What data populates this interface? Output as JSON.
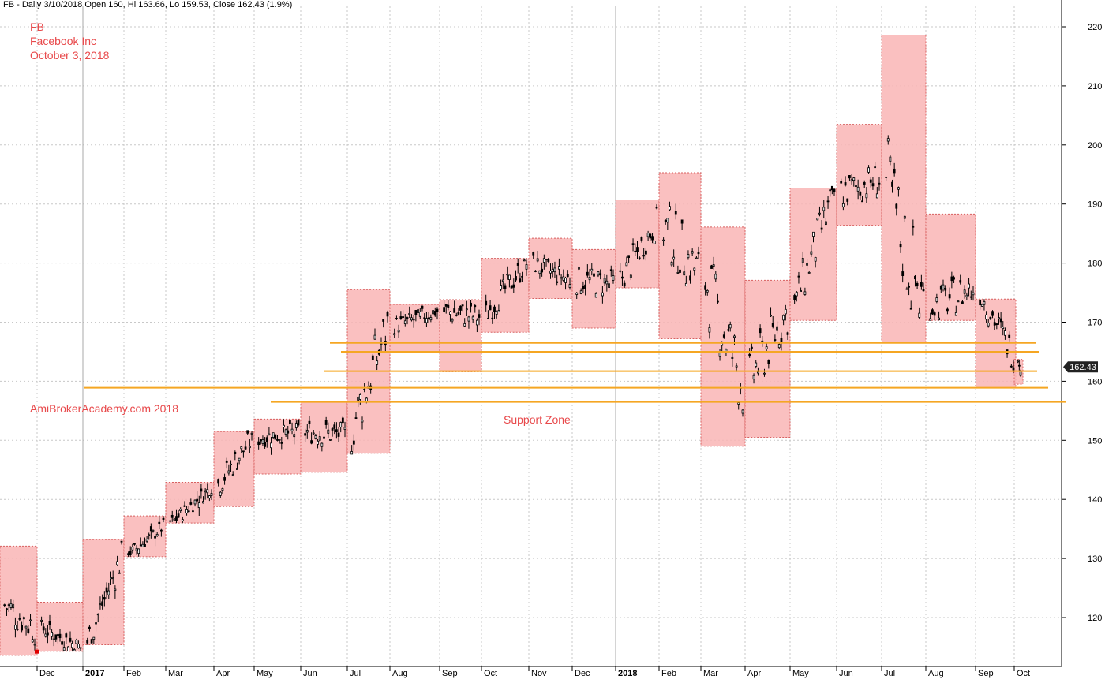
{
  "header": {
    "text": "FB - Daily 3/10/2018 Open 160, Hi 163.66, Lo 159.53, Close 162.43 (1.9%)"
  },
  "annotations": {
    "ticker": "FB",
    "company": "Facebook Inc",
    "date": "October 3, 2018",
    "watermark": "AmiBrokerAcademy.com  2018",
    "support_label": "Support Zone"
  },
  "colors": {
    "box_fill": "#f9b5b5",
    "box_border": "#d86060",
    "support_line": "#f5a623",
    "candle": "#000000",
    "grid": "#c8c8c8",
    "price_tag_bg": "#222222",
    "text_red": "#e8494b"
  },
  "chart_data": {
    "type": "candlestick",
    "title": "FB - Daily 3/10/2018 Open 160, Hi 163.66, Lo 159.53, Close 162.43 (1.9%)",
    "ylim": [
      113,
      222
    ],
    "y_ticks": [
      120,
      130,
      140,
      150,
      160,
      170,
      180,
      190,
      200,
      210,
      220
    ],
    "x_ticks": [
      "Dec",
      "2017",
      "Feb",
      "Mar",
      "Apr",
      "May",
      "Jun",
      "Jul",
      "Aug",
      "Sep",
      "Oct",
      "Nov",
      "Dec",
      "2018",
      "Feb",
      "Mar",
      "Apr",
      "May",
      "Jun",
      "Jul",
      "Aug",
      "Sep",
      "Oct"
    ],
    "last_price_label": "162.43",
    "grid": true,
    "monthly_ranges": [
      {
        "month": "Nov 2016",
        "high": 132.1,
        "low": 113.6
      },
      {
        "month": "Dec 2016",
        "high": 122.6,
        "low": 114.3
      },
      {
        "month": "Jan 2017",
        "high": 133.2,
        "low": 115.4
      },
      {
        "month": "Feb 2017",
        "high": 137.2,
        "low": 130.3
      },
      {
        "month": "Mar 2017",
        "high": 142.9,
        "low": 136.0
      },
      {
        "month": "Apr 2017",
        "high": 151.5,
        "low": 138.8
      },
      {
        "month": "May 2017",
        "high": 153.6,
        "low": 144.3
      },
      {
        "month": "Jun 2017",
        "high": 156.5,
        "low": 144.6
      },
      {
        "month": "Jul 2017",
        "high": 175.5,
        "low": 147.8
      },
      {
        "month": "Aug 2017",
        "high": 173.0,
        "low": 165.0
      },
      {
        "month": "Sep 2017",
        "high": 173.8,
        "low": 161.6
      },
      {
        "month": "Oct 2017",
        "high": 180.8,
        "low": 168.3
      },
      {
        "month": "Nov 2017",
        "high": 184.2,
        "low": 174.0
      },
      {
        "month": "Dec 2017",
        "high": 182.3,
        "low": 169.0
      },
      {
        "month": "Jan 2018",
        "high": 190.7,
        "low": 175.8
      },
      {
        "month": "Feb 2018",
        "high": 195.3,
        "low": 167.2
      },
      {
        "month": "Mar 2018",
        "high": 186.1,
        "low": 149.0
      },
      {
        "month": "Apr 2018",
        "high": 177.1,
        "low": 150.5
      },
      {
        "month": "May 2018",
        "high": 192.7,
        "low": 170.3
      },
      {
        "month": "Jun 2018",
        "high": 203.5,
        "low": 186.4
      },
      {
        "month": "Jul 2018",
        "high": 218.6,
        "low": 166.6
      },
      {
        "month": "Aug 2018",
        "high": 188.3,
        "low": 170.3
      },
      {
        "month": "Sep 2018",
        "high": 173.9,
        "low": 158.9
      },
      {
        "month": "Oct 2018",
        "high": 163.7,
        "low": 159.5
      }
    ],
    "support_lines": [
      166.5,
      165.0,
      161.7,
      158.9,
      156.5
    ],
    "support_zone_label": "Support Zone",
    "key_closes": [
      {
        "date": "Nov 2016",
        "close": 118.4
      },
      {
        "date": "Dec 2016",
        "close": 115.0
      },
      {
        "date": "Jan 2017",
        "close": 130.3
      },
      {
        "date": "Feb 2017",
        "close": 135.5
      },
      {
        "date": "Mar 2017",
        "close": 142.1
      },
      {
        "date": "Apr 2017",
        "close": 150.3
      },
      {
        "date": "May 2017",
        "close": 151.5
      },
      {
        "date": "Jun 2017",
        "close": 151.0
      },
      {
        "date": "Jul 2017",
        "close": 169.3
      },
      {
        "date": "Aug 2017",
        "close": 171.9
      },
      {
        "date": "Sep 2017",
        "close": 170.9
      },
      {
        "date": "Oct 2017",
        "close": 180.1
      },
      {
        "date": "Nov 2017",
        "close": 177.2
      },
      {
        "date": "Dec 2017",
        "close": 176.5
      },
      {
        "date": "Jan 2018",
        "close": 186.9
      },
      {
        "date": "Feb 2018",
        "close": 178.3
      },
      {
        "date": "Mar 2018",
        "close": 159.8
      },
      {
        "date": "Apr 2018",
        "close": 172.0
      },
      {
        "date": "May 2018",
        "close": 191.8
      },
      {
        "date": "Jun 2018",
        "close": 194.3
      },
      {
        "date": "Jul 2018",
        "close": 172.6
      },
      {
        "date": "Aug 2018",
        "close": 175.7
      },
      {
        "date": "Sep 2018",
        "close": 164.5
      },
      {
        "date": "Oct 2018",
        "close": 162.43
      }
    ]
  }
}
